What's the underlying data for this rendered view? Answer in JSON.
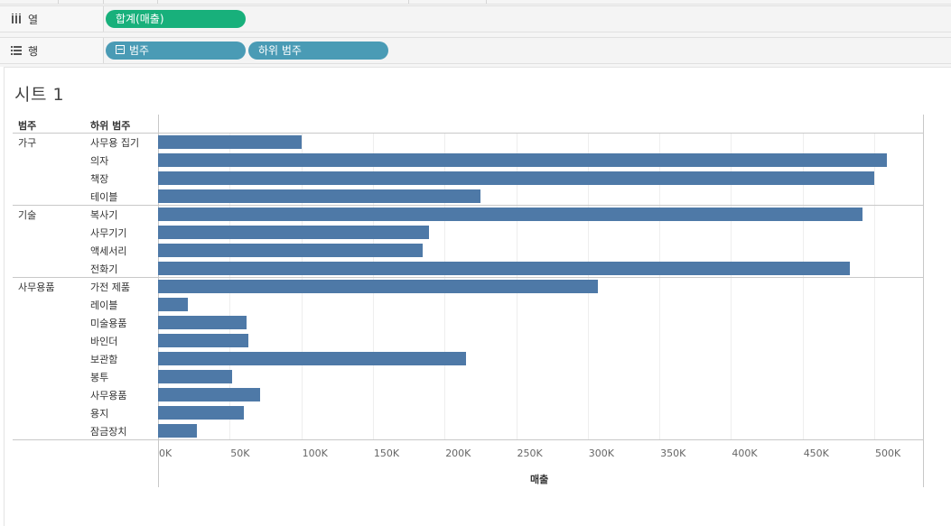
{
  "shelves": {
    "columns": {
      "label": "열",
      "pills": [
        "합계(매출)"
      ]
    },
    "rows": {
      "label": "행",
      "pills": [
        "범주",
        "하위 범주"
      ]
    }
  },
  "sheet": {
    "title": "시트 1"
  },
  "headers": {
    "category": "범주",
    "subcategory": "하위 범주"
  },
  "colors": {
    "bar": "#4e79a7",
    "measure_pill": "#18b07b",
    "dimension_pill": "#4a9bb5"
  },
  "chart_data": {
    "type": "bar",
    "orientation": "horizontal",
    "groups": [
      {
        "category": "가구",
        "items": [
          {
            "sub": "사무용 집기",
            "value": 100000
          },
          {
            "sub": "의자",
            "value": 509000
          },
          {
            "sub": "책장",
            "value": 500000
          },
          {
            "sub": "테이블",
            "value": 225000
          }
        ]
      },
      {
        "category": "기술",
        "items": [
          {
            "sub": "복사기",
            "value": 492000
          },
          {
            "sub": "사무기기",
            "value": 189000
          },
          {
            "sub": "액세서리",
            "value": 185000
          },
          {
            "sub": "전화기",
            "value": 483000
          }
        ]
      },
      {
        "category": "사무용품",
        "items": [
          {
            "sub": "가전 제품",
            "value": 307000
          },
          {
            "sub": "레이블",
            "value": 21000
          },
          {
            "sub": "미술용품",
            "value": 62000
          },
          {
            "sub": "바인더",
            "value": 63000
          },
          {
            "sub": "보관함",
            "value": 215000
          },
          {
            "sub": "봉투",
            "value": 52000
          },
          {
            "sub": "사무용품",
            "value": 71000
          },
          {
            "sub": "용지",
            "value": 60000
          },
          {
            "sub": "잠금장치",
            "value": 27000
          }
        ]
      }
    ],
    "xlim": [
      0,
      535000
    ],
    "ticks": [
      "0K",
      "50K",
      "100K",
      "150K",
      "200K",
      "250K",
      "300K",
      "350K",
      "400K",
      "450K",
      "500K"
    ],
    "tick_values": [
      0,
      50000,
      100000,
      150000,
      200000,
      250000,
      300000,
      350000,
      400000,
      450000,
      500000
    ],
    "xlabel": "매출"
  }
}
